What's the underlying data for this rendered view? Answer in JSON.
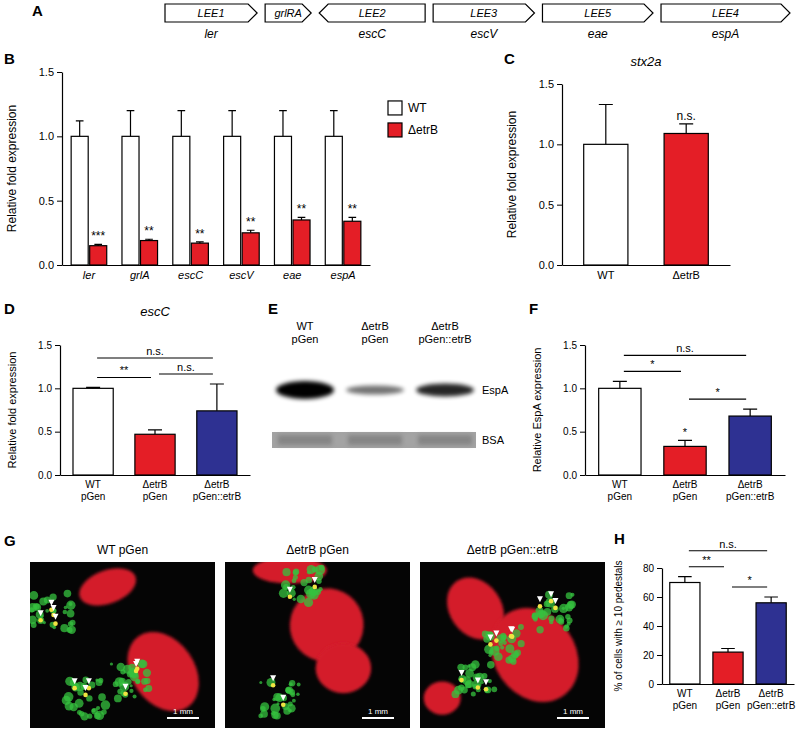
{
  "diagram": {
    "panel": "A",
    "genes": [
      {
        "operon": "LEE1",
        "gene": "ler",
        "direction": "right"
      },
      {
        "operon": "grlRA",
        "direction": "right"
      },
      {
        "operon": "LEE2",
        "gene": "escC",
        "direction": "left"
      },
      {
        "operon": "LEE3",
        "gene": "escV",
        "direction": "right"
      },
      {
        "operon": "LEE5",
        "gene": "eae",
        "direction": "right"
      },
      {
        "operon": "LEE4",
        "gene": "espA",
        "direction": "right"
      }
    ]
  },
  "chart_data": [
    {
      "panel": "B",
      "type": "bar",
      "categories": [
        "ler",
        "grlA",
        "escC",
        "escV",
        "eae",
        "espA"
      ],
      "series": [
        {
          "name": "WT",
          "color": "#ffffff",
          "values": [
            1,
            1,
            1,
            1,
            1,
            1
          ],
          "errors": [
            0.12,
            0.2,
            0.2,
            0.2,
            0.2,
            0.2
          ]
        },
        {
          "name": "ΔetrB",
          "color": "#e41e26",
          "values": [
            0.15,
            0.19,
            0.17,
            0.25,
            0.35,
            0.34
          ],
          "errors": [
            0.01,
            0.01,
            0.01,
            0.02,
            0.02,
            0.03
          ]
        }
      ],
      "y_label": "Relative fold expression",
      "ylim": [
        0,
        1.5
      ],
      "yticks": [
        {
          "value": 0,
          "label": "0.0"
        },
        0.5,
        {
          "value": 1,
          "label": "1.0"
        },
        1.5
      ],
      "legend": "right",
      "annotations": [
        {
          "series": 1,
          "category": 0,
          "text": "***"
        },
        {
          "series": 1,
          "category": 1,
          "text": "**"
        },
        {
          "series": 1,
          "category": 2,
          "text": "**"
        },
        {
          "series": 1,
          "category": 3,
          "text": "**"
        },
        {
          "series": 1,
          "category": 4,
          "text": "**"
        },
        {
          "series": 1,
          "category": 5,
          "text": "**"
        }
      ]
    },
    {
      "panel": "C",
      "type": "bar",
      "title": "stx2a",
      "categories": [
        "WT",
        "ΔetrB"
      ],
      "values": [
        1,
        1.09
      ],
      "errors": [
        0.33,
        0.08
      ],
      "colors": [
        "#ffffff",
        "#e41e26"
      ],
      "y_label": "Relative fold expression",
      "ylim": [
        0,
        1.5
      ],
      "yticks": [
        {
          "value": 0,
          "label": "0.0"
        },
        0.5,
        {
          "value": 1,
          "label": "1.0"
        },
        1.5
      ],
      "annotations": [
        {
          "category": 1,
          "text": "n.s."
        }
      ]
    },
    {
      "panel": "D",
      "type": "bar",
      "title": "escC",
      "categories": [
        "WT pGen",
        "ΔetrB pGen",
        "ΔetrB pGen::etrB"
      ],
      "values": [
        1,
        0.47,
        0.74
      ],
      "errors": [
        0.01,
        0.05,
        0.31
      ],
      "colors": [
        "#ffffff",
        "#e41e26",
        "#2e3192"
      ],
      "y_label": "Relative fold expression",
      "ylim": [
        0,
        1.5
      ],
      "yticks": [
        {
          "value": 0,
          "label": "0.0"
        },
        0.5,
        {
          "value": 1,
          "label": "1.0"
        },
        1.5
      ],
      "annotations": [
        {
          "from": 0,
          "to": 1,
          "text": "**"
        },
        {
          "from": 0,
          "to": 2,
          "text": "n.s."
        },
        {
          "from": 1,
          "to": 2,
          "text": "n.s."
        }
      ]
    },
    {
      "panel": "F",
      "type": "bar",
      "categories": [
        "WT pGen",
        "ΔetrB pGen",
        "ΔetrB pGen::etrB"
      ],
      "values": [
        1,
        0.33,
        0.68
      ],
      "errors": [
        0.08,
        0.07,
        0.08
      ],
      "colors": [
        "#ffffff",
        "#e41e26",
        "#2e3192"
      ],
      "y_label": "Relative EspA expression",
      "ylim": [
        0,
        1.5
      ],
      "yticks": [
        {
          "value": 0,
          "label": "0.0"
        },
        0.5,
        {
          "value": 1,
          "label": "1.0"
        },
        1.5
      ],
      "annotations": [
        {
          "from": 0,
          "to": 1,
          "text": "*"
        },
        {
          "from": 0,
          "to": 2,
          "text": "n.s."
        },
        {
          "from": 1,
          "to": 2,
          "text": "*"
        },
        {
          "category": 1,
          "text": "*"
        }
      ]
    },
    {
      "panel": "H",
      "type": "bar",
      "categories": [
        "WT pGen",
        "ΔetrB pGen",
        "ΔetrB pGen::etrB"
      ],
      "values": [
        70,
        22,
        56
      ],
      "errors": [
        4,
        2.5,
        4
      ],
      "colors": [
        "#ffffff",
        "#e41e26",
        "#2e3192"
      ],
      "y_label": "% of cells with ≥ 10 pedestals",
      "ylim": [
        0,
        80
      ],
      "yticks": [
        0,
        20,
        40,
        60,
        80
      ],
      "annotations": [
        {
          "from": 0,
          "to": 1,
          "text": "**"
        },
        {
          "from": 0,
          "to": 2,
          "text": "n.s."
        },
        {
          "from": 1,
          "to": 2,
          "text": "*"
        }
      ]
    }
  ],
  "blot": {
    "panel": "E",
    "lanes": [
      "WT pGen",
      "ΔetrB pGen",
      "ΔetrB pGen::etrB"
    ],
    "bands": [
      "EspA",
      "BSA"
    ]
  },
  "micrographs": {
    "panel": "G",
    "images": [
      {
        "title": "WT pGen",
        "scale_bar": "1 mm"
      },
      {
        "title": "ΔetrB pGen",
        "scale_bar": "1 mm"
      },
      {
        "title": "ΔetrB pGen::etrB",
        "scale_bar": "1 mm"
      }
    ]
  }
}
